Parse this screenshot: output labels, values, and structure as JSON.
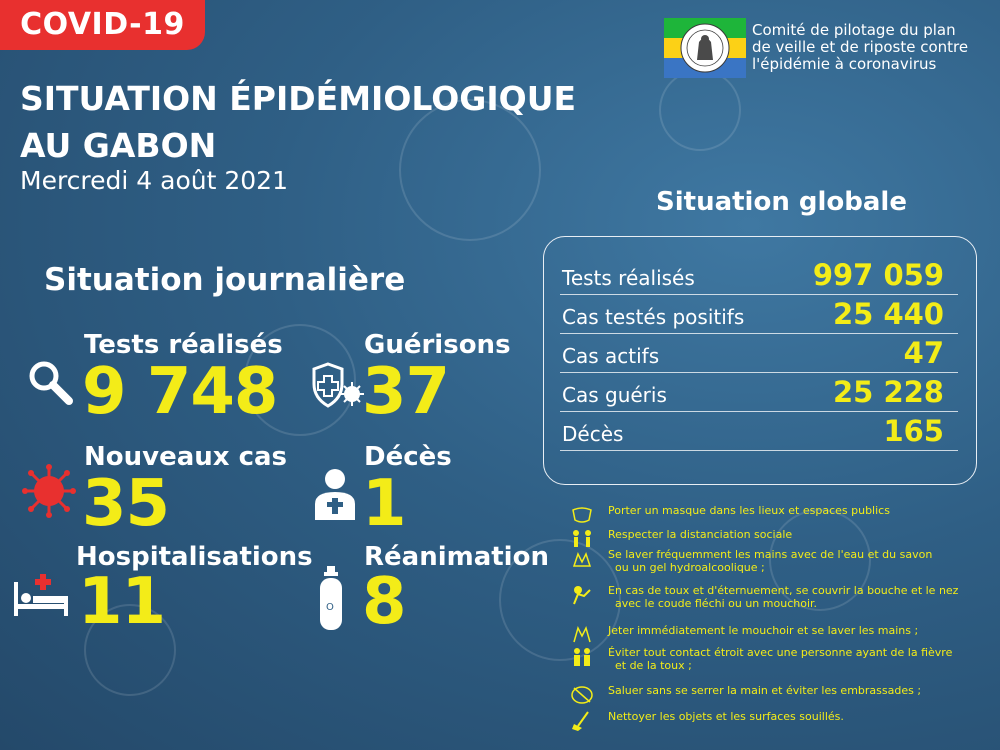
{
  "tag": "COVID-19",
  "organization": {
    "lines": [
      "Comité de pilotage du plan",
      "de veille et de riposte contre",
      "l'épidémie à coronavirus"
    ],
    "logo_colors": [
      "#1eb53a",
      "#fcd116",
      "#3a75c4"
    ]
  },
  "title_lines": [
    "SITUATION ÉPIDÉMIOLOGIQUE",
    "AU GABON"
  ],
  "date": "Mercredi 4 août 2021",
  "daily": {
    "heading": "Situation journalière",
    "stats": [
      {
        "label": "Tests réalisés",
        "value": "9 748",
        "icon": "magnifier-icon"
      },
      {
        "label": "Guérisons",
        "value": "37",
        "icon": "shield-plus-icon"
      },
      {
        "label": "Nouveaux cas",
        "value": "35",
        "icon": "virus-icon"
      },
      {
        "label": "Décès",
        "value": "1",
        "icon": "person-cross-icon"
      },
      {
        "label": "Hospitalisations",
        "value": "11",
        "icon": "hospital-bed-icon"
      },
      {
        "label": "Réanimation",
        "value": "8",
        "icon": "oxygen-tank-icon"
      }
    ]
  },
  "global": {
    "heading": "Situation globale",
    "rows": [
      {
        "label": "Tests réalisés",
        "value": "997 059"
      },
      {
        "label": "Cas testés positifs",
        "value": "25 440"
      },
      {
        "label": "Cas actifs",
        "value": "47"
      },
      {
        "label": "Cas guéris",
        "value": "25 228"
      },
      {
        "label": "Décès",
        "value": "165"
      }
    ]
  },
  "advice": [
    {
      "text": "Porter un masque dans les lieux et espaces publics",
      "icon": "mask-icon"
    },
    {
      "text": "Respecter la distanciation sociale",
      "icon": "distancing-icon"
    },
    {
      "text": "Se laver fréquemment les mains avec de l'eau et du savon\n  ou un gel hydroalcoolique ;",
      "icon": "hand-wash-icon"
    },
    {
      "text": "En cas de toux et d'éternuement, se couvrir la bouche et le nez\n  avec le coude fléchi ou un mouchoir.",
      "icon": "cough-icon"
    },
    {
      "text": "Jeter immédiatement le mouchoir et se laver les mains ;",
      "icon": "tissue-icon"
    },
    {
      "text": "Éviter tout contact étroit avec une personne ayant de la fièvre\n  et de la toux ;",
      "icon": "contact-icon"
    },
    {
      "text": "Saluer sans se serrer la main et éviter les embrassades ;",
      "icon": "no-handshake-icon"
    },
    {
      "text": "Nettoyer les objets et les surfaces souillés.",
      "icon": "cleaning-icon"
    }
  ],
  "colors": {
    "accent_yellow": "#f3ec18",
    "tag_red": "#e8302f",
    "background": "#2f5f85"
  }
}
